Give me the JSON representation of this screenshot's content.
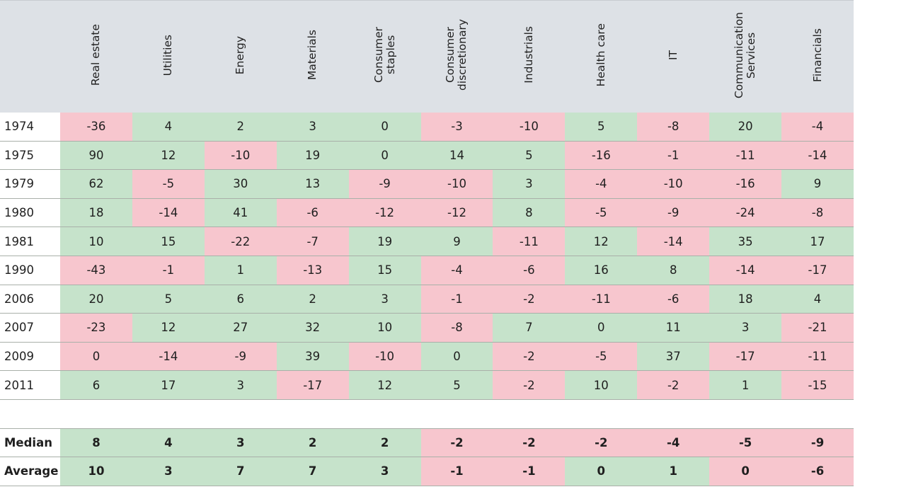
{
  "table": {
    "corner_label": "",
    "columns": [
      "Real estate",
      "Utilities",
      "Energy",
      "Materials",
      "Consumer\nstaples",
      "Consumer\ndiscretionary",
      "Industrials",
      "Health care",
      "IT",
      "Communication\nServices",
      "Financials"
    ],
    "rows": [
      {
        "year": "1974",
        "values": [
          -36,
          4,
          2,
          3,
          0,
          -3,
          -10,
          5,
          -8,
          20,
          -4
        ]
      },
      {
        "year": "1975",
        "values": [
          90,
          12,
          -10,
          19,
          0,
          14,
          5,
          -16,
          -1,
          -11,
          -14
        ]
      },
      {
        "year": "1979",
        "values": [
          62,
          -5,
          30,
          13,
          -9,
          -10,
          3,
          -4,
          -10,
          -16,
          9
        ]
      },
      {
        "year": "1980",
        "values": [
          18,
          -14,
          41,
          -6,
          -12,
          -12,
          8,
          -5,
          -9,
          -24,
          -8
        ]
      },
      {
        "year": "1981",
        "values": [
          10,
          15,
          -22,
          -7,
          19,
          9,
          -11,
          12,
          -14,
          35,
          17
        ]
      },
      {
        "year": "1990",
        "values": [
          -43,
          -1,
          1,
          -13,
          15,
          -4,
          -6,
          16,
          8,
          -14,
          -17
        ]
      },
      {
        "year": "2006",
        "values": [
          20,
          5,
          6,
          2,
          3,
          -1,
          -2,
          -11,
          -6,
          18,
          4
        ]
      },
      {
        "year": "2007",
        "values": [
          -23,
          12,
          27,
          32,
          10,
          -8,
          7,
          0,
          11,
          3,
          -21
        ]
      },
      {
        "year": "2009",
        "values": [
          0,
          -14,
          -9,
          39,
          -10,
          0,
          -2,
          -5,
          37,
          -17,
          -11
        ]
      },
      {
        "year": "2011",
        "values": [
          6,
          17,
          3,
          -17,
          12,
          5,
          -2,
          10,
          -2,
          1,
          -15
        ]
      }
    ],
    "summary": [
      {
        "label": "Median",
        "values": [
          8,
          4,
          3,
          2,
          2,
          -2,
          -2,
          -2,
          -4,
          -5,
          -9
        ]
      },
      {
        "label": "Average",
        "values": [
          10,
          3,
          7,
          7,
          3,
          -1,
          -1,
          0,
          1,
          0,
          -6
        ]
      }
    ],
    "cell_colors": {
      "rows": [
        [
          "neg",
          "pos",
          "pos",
          "pos",
          "pos",
          "neg",
          "neg",
          "pos",
          "neg",
          "pos",
          "neg"
        ],
        [
          "pos",
          "pos",
          "neg",
          "pos",
          "pos",
          "pos",
          "pos",
          "neg",
          "neg",
          "neg",
          "neg"
        ],
        [
          "pos",
          "neg",
          "pos",
          "pos",
          "neg",
          "neg",
          "pos",
          "neg",
          "neg",
          "neg",
          "pos"
        ],
        [
          "pos",
          "neg",
          "pos",
          "neg",
          "neg",
          "neg",
          "pos",
          "neg",
          "neg",
          "neg",
          "neg"
        ],
        [
          "pos",
          "pos",
          "neg",
          "neg",
          "pos",
          "pos",
          "neg",
          "pos",
          "neg",
          "pos",
          "pos"
        ],
        [
          "neg",
          "neg",
          "pos",
          "neg",
          "pos",
          "neg",
          "neg",
          "pos",
          "pos",
          "neg",
          "neg"
        ],
        [
          "pos",
          "pos",
          "pos",
          "pos",
          "pos",
          "neg",
          "neg",
          "neg",
          "neg",
          "pos",
          "pos"
        ],
        [
          "neg",
          "pos",
          "pos",
          "pos",
          "pos",
          "neg",
          "pos",
          "pos",
          "pos",
          "pos",
          "neg"
        ],
        [
          "neg",
          "neg",
          "neg",
          "pos",
          "neg",
          "pos",
          "neg",
          "neg",
          "pos",
          "neg",
          "neg"
        ],
        [
          "pos",
          "pos",
          "pos",
          "neg",
          "pos",
          "pos",
          "neg",
          "pos",
          "neg",
          "pos",
          "neg"
        ]
      ],
      "summary": [
        [
          "pos",
          "pos",
          "pos",
          "pos",
          "pos",
          "neg",
          "neg",
          "neg",
          "neg",
          "neg",
          "neg"
        ],
        [
          "pos",
          "pos",
          "pos",
          "pos",
          "pos",
          "neg",
          "neg",
          "pos",
          "pos",
          "neg",
          "neg"
        ]
      ]
    },
    "colors": {
      "positive": "#c6e3cb",
      "negative": "#f7c6ce",
      "header": "#dde1e6"
    }
  }
}
